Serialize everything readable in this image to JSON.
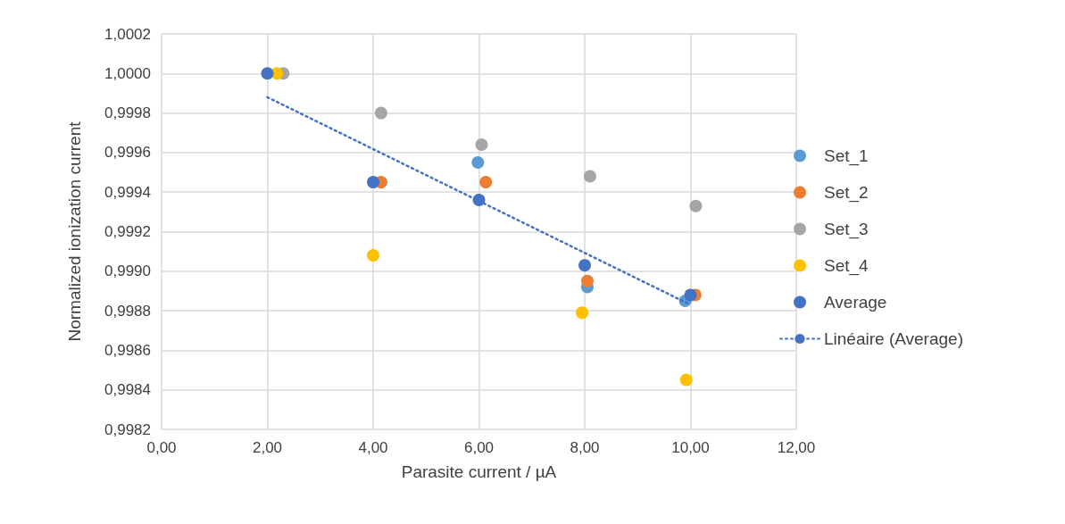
{
  "chart_data": {
    "type": "scatter",
    "xlabel": "Parasite current / µA",
    "ylabel": "Normalized ionization current",
    "xlim": [
      0,
      12
    ],
    "xticks": [
      {
        "value": 0,
        "label": "0,00"
      },
      {
        "value": 2,
        "label": "2,00"
      },
      {
        "value": 4,
        "label": "4,00"
      },
      {
        "value": 6,
        "label": "6,00"
      },
      {
        "value": 8,
        "label": "8,00"
      },
      {
        "value": 10,
        "label": "10,00"
      },
      {
        "value": 12,
        "label": "12,00"
      }
    ],
    "ylim": [
      0.9982,
      1.0002
    ],
    "yticks": [
      {
        "value": 0.9982,
        "label": "0,9982"
      },
      {
        "value": 0.9984,
        "label": "0,9984"
      },
      {
        "value": 0.9986,
        "label": "0,9986"
      },
      {
        "value": 0.9988,
        "label": "0,9988"
      },
      {
        "value": 0.999,
        "label": "0,9990"
      },
      {
        "value": 0.9992,
        "label": "0,9992"
      },
      {
        "value": 0.9994,
        "label": "0,9994"
      },
      {
        "value": 0.9996,
        "label": "0,9996"
      },
      {
        "value": 0.9998,
        "label": "0,9998"
      },
      {
        "value": 1.0,
        "label": "1,0000"
      },
      {
        "value": 1.0002,
        "label": "1,0002"
      }
    ],
    "grid": true,
    "legend": "right",
    "marker": "circle",
    "series": [
      {
        "name": "Set_1",
        "color": "#5b9bd5",
        "x": [
          null,
          null,
          5.98,
          8.05,
          9.9
        ],
        "values": [
          null,
          null,
          0.99955,
          0.99892,
          0.99885
        ]
      },
      {
        "name": "Set_2",
        "color": "#ed7d31",
        "x": [
          null,
          4.15,
          6.13,
          8.05,
          10.09
        ],
        "values": [
          null,
          0.99945,
          0.99945,
          0.99895,
          0.99888
        ]
      },
      {
        "name": "Set_3",
        "color": "#a5a5a5",
        "x": [
          2.3,
          4.15,
          6.05,
          8.1,
          10.1
        ],
        "values": [
          1.0,
          0.9998,
          0.99964,
          0.99948,
          0.99933
        ]
      },
      {
        "name": "Set_4",
        "color": "#ffc000",
        "x": [
          2.18,
          4.0,
          7.95,
          9.92
        ],
        "values": [
          1.0,
          0.99908,
          0.99879,
          0.99845
        ]
      },
      {
        "name": "Average",
        "color": "#4472c4",
        "x": [
          2.0,
          4.0,
          6.0,
          8.0,
          10.0
        ],
        "values": [
          1.0,
          0.99945,
          0.99936,
          0.99903,
          0.99888
        ]
      },
      {
        "name": "Linéaire (Average)",
        "type": "line",
        "color": "#4472c4",
        "marker": "none",
        "line_style": "dotted",
        "x": [
          2.0,
          10.0
        ],
        "values": [
          0.99988,
          0.99883
        ]
      }
    ]
  }
}
